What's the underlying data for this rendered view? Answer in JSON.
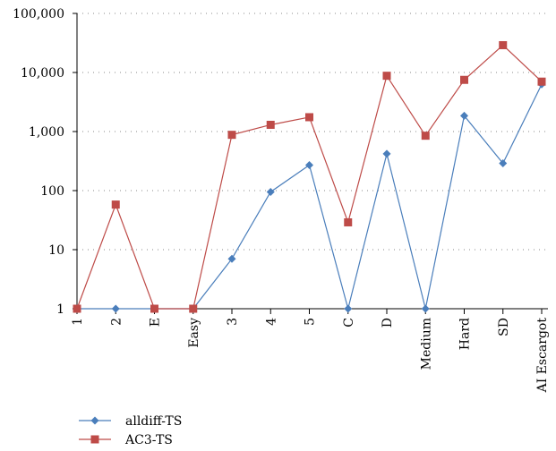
{
  "chart_data": {
    "type": "line",
    "title": "",
    "xlabel": "",
    "ylabel": "",
    "y_scale": "log",
    "ylim": [
      1,
      100000
    ],
    "y_ticks": [
      1,
      10,
      100,
      1000,
      10000,
      100000
    ],
    "y_tick_labels": [
      "1",
      "10",
      "100",
      "1,000",
      "10,000",
      "100,000"
    ],
    "grid": "horizontal dotted",
    "legend_position": "bottom-left",
    "categories": [
      "1",
      "2",
      "E",
      "Easy",
      "3",
      "4",
      "5",
      "C",
      "D",
      "Medium",
      "Hard",
      "SD",
      "AI Escargot"
    ],
    "series": [
      {
        "name": "alldiff-TS",
        "color": "#4a7ebb",
        "marker": "diamond",
        "values": [
          1,
          1,
          1,
          1,
          7,
          95,
          270,
          1,
          420,
          1,
          1850,
          290,
          6300
        ]
      },
      {
        "name": "AC3-TS",
        "color": "#be4b48",
        "marker": "square",
        "values": [
          1,
          58,
          1,
          1,
          880,
          1300,
          1750,
          29,
          8800,
          850,
          7500,
          29000,
          7000
        ]
      }
    ]
  }
}
